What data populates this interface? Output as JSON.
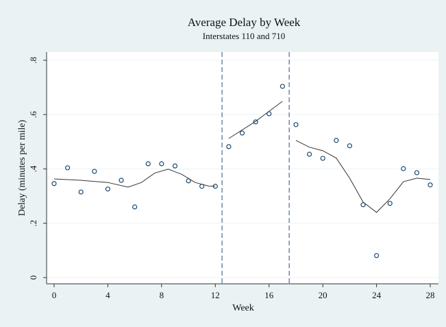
{
  "chart_data": {
    "type": "scatter",
    "title": "Average Delay by Week",
    "subtitle": "Interstates 110 and 710",
    "xlabel": "Week",
    "ylabel": "Delay (minutes per mile)",
    "xlim": [
      -0.56,
      28.61
    ],
    "ylim": [
      -0.023,
      0.83
    ],
    "xticks": [
      0,
      4,
      8,
      12,
      16,
      20,
      24,
      28
    ],
    "yticks": [
      0,
      {
        "value": 0.2,
        "label": ".2"
      },
      {
        "value": 0.4,
        "label": ".4"
      },
      {
        "value": 0.6,
        "label": ".6"
      },
      {
        "value": 0.8,
        "label": ".8"
      }
    ],
    "grid": true,
    "points": {
      "color": "#1a476f",
      "x": [
        0,
        1,
        2,
        3,
        4,
        5,
        6,
        7,
        8,
        9,
        10,
        11,
        12,
        13,
        14,
        15,
        16,
        17,
        18,
        19,
        20,
        21,
        22,
        23,
        24,
        25,
        26,
        27,
        28
      ],
      "values": [
        0.346,
        0.404,
        0.315,
        0.391,
        0.326,
        0.358,
        0.26,
        0.419,
        0.419,
        0.411,
        0.356,
        0.336,
        0.336,
        0.482,
        0.532,
        0.573,
        0.603,
        0.704,
        0.563,
        0.454,
        0.439,
        0.505,
        0.485,
        0.268,
        0.081,
        0.273,
        0.401,
        0.386,
        0.341
      ]
    },
    "fits": [
      {
        "color": "#333333",
        "x": [
          0,
          2,
          4,
          5.5,
          6.5,
          7.5,
          8.5,
          9.5,
          10.5,
          11.5,
          12
        ],
        "values": [
          0.363,
          0.358,
          0.35,
          0.333,
          0.35,
          0.385,
          0.399,
          0.38,
          0.35,
          0.337,
          0.336
        ]
      },
      {
        "color": "#333333",
        "x": [
          13,
          15,
          17
        ],
        "values": [
          0.512,
          0.575,
          0.649
        ]
      },
      {
        "color": "#333333",
        "x": [
          18,
          19,
          20,
          21,
          22,
          23,
          24,
          25,
          26,
          27,
          28
        ],
        "values": [
          0.505,
          0.48,
          0.467,
          0.44,
          0.366,
          0.278,
          0.24,
          0.29,
          0.353,
          0.366,
          0.361
        ]
      }
    ],
    "vlines": {
      "color": "#4a6a8a",
      "x": [
        12.5,
        17.5
      ]
    }
  }
}
